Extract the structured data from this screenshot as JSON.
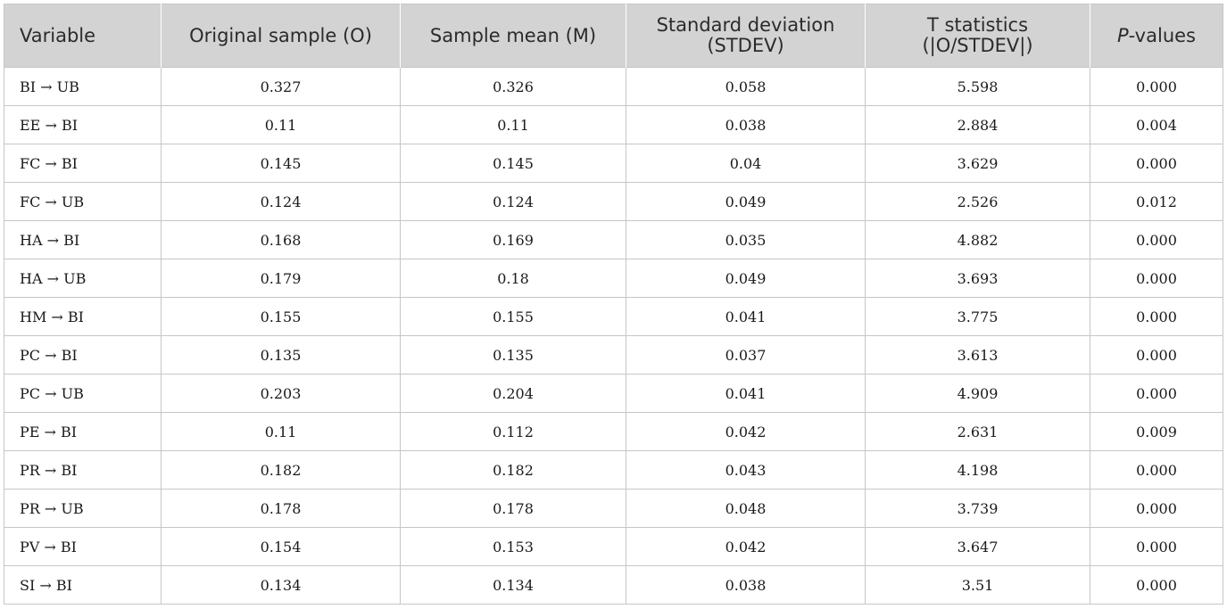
{
  "table": {
    "headers": [
      {
        "lines": [
          "Variable"
        ],
        "italic_prefix": ""
      },
      {
        "lines": [
          "Original sample (O)"
        ],
        "italic_prefix": ""
      },
      {
        "lines": [
          "Sample mean (M)"
        ],
        "italic_prefix": ""
      },
      {
        "lines": [
          "Standard deviation",
          "(STDEV)"
        ],
        "italic_prefix": ""
      },
      {
        "lines": [
          "T statistics",
          "(|O/STDEV|)"
        ],
        "italic_prefix": ""
      },
      {
        "italic_prefix": "P",
        "rest": "-values"
      }
    ],
    "rows": [
      [
        "BI →  UB",
        "0.327",
        "0.326",
        "0.058",
        "5.598",
        "0.000"
      ],
      [
        "EE →  BI",
        "0.11",
        "0.11",
        "0.038",
        "2.884",
        "0.004"
      ],
      [
        "FC →  BI",
        "0.145",
        "0.145",
        "0.04",
        "3.629",
        "0.000"
      ],
      [
        "FC →  UB",
        "0.124",
        "0.124",
        "0.049",
        "2.526",
        "0.012"
      ],
      [
        "HA →  BI",
        "0.168",
        "0.169",
        "0.035",
        "4.882",
        "0.000"
      ],
      [
        "HA →  UB",
        "0.179",
        "0.18",
        "0.049",
        "3.693",
        "0.000"
      ],
      [
        "HM →  BI",
        "0.155",
        "0.155",
        "0.041",
        "3.775",
        "0.000"
      ],
      [
        "PC →  BI",
        "0.135",
        "0.135",
        "0.037",
        "3.613",
        "0.000"
      ],
      [
        "PC →  UB",
        "0.203",
        "0.204",
        "0.041",
        "4.909",
        "0.000"
      ],
      [
        "PE →  BI",
        "0.11",
        "0.112",
        "0.042",
        "2.631",
        "0.009"
      ],
      [
        "PR →  BI",
        "0.182",
        "0.182",
        "0.043",
        "4.198",
        "0.000"
      ],
      [
        "PR →  UB",
        "0.178",
        "0.178",
        "0.048",
        "3.739",
        "0.000"
      ],
      [
        "PV →  BI",
        "0.154",
        "0.153",
        "0.042",
        "3.647",
        "0.000"
      ],
      [
        "SI →  BI",
        "0.134",
        "0.134",
        "0.038",
        "3.51",
        "0.000"
      ]
    ]
  }
}
